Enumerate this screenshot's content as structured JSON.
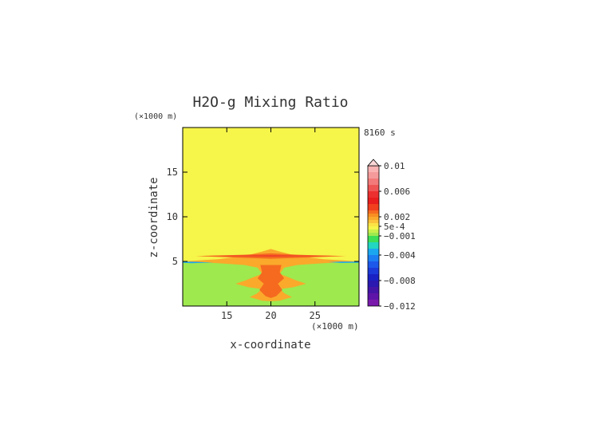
{
  "chart_data": {
    "type": "heatmap",
    "title": "H2O-g Mixing Ratio",
    "time_label": "8160 s",
    "xlabel": "x-coordinate",
    "ylabel": "z-coordinate",
    "x_unit": "(×1000 m)",
    "y_unit": "(×1000 m)",
    "xlim": [
      10,
      30
    ],
    "ylim": [
      0,
      20
    ],
    "x_ticks": [
      15,
      20,
      25
    ],
    "y_ticks": [
      5,
      10,
      15
    ],
    "colorbar": {
      "min": -0.012,
      "max": 0.01,
      "extend": "max",
      "tick_values": [
        0.01,
        0.006,
        0.002,
        0.0005,
        -0.001,
        -0.004,
        -0.008,
        -0.012
      ],
      "tick_labels": [
        "0.01",
        "0.006",
        "0.002",
        "5e-4",
        "−0.001",
        "−0.004",
        "−0.008",
        "−0.012"
      ],
      "levels": [
        {
          "lo": 0.009,
          "hi": 0.01,
          "color": "#f9b3b3"
        },
        {
          "lo": 0.008,
          "hi": 0.009,
          "color": "#f59a9a"
        },
        {
          "lo": 0.007,
          "hi": 0.008,
          "color": "#f27a7a"
        },
        {
          "lo": 0.006,
          "hi": 0.007,
          "color": "#ef5454"
        },
        {
          "lo": 0.005,
          "hi": 0.006,
          "color": "#ec2f2f"
        },
        {
          "lo": 0.004,
          "hi": 0.005,
          "color": "#e81d1d"
        },
        {
          "lo": 0.003,
          "hi": 0.004,
          "color": "#f0401e"
        },
        {
          "lo": 0.0025,
          "hi": 0.003,
          "color": "#f56a1f"
        },
        {
          "lo": 0.002,
          "hi": 0.0025,
          "color": "#f88f22"
        },
        {
          "lo": 0.0015,
          "hi": 0.002,
          "color": "#faa92b"
        },
        {
          "lo": 0.001,
          "hi": 0.0015,
          "color": "#fbc23a"
        },
        {
          "lo": 0.0005,
          "hi": 0.001,
          "color": "#fbe446"
        },
        {
          "lo": 0.0,
          "hi": 0.0005,
          "color": "#f6f54a"
        },
        {
          "lo": -0.0005,
          "hi": 0.0,
          "color": "#c9f04a"
        },
        {
          "lo": -0.001,
          "hi": -0.0005,
          "color": "#9ee94e"
        },
        {
          "lo": -0.002,
          "hi": -0.001,
          "color": "#3cdf55"
        },
        {
          "lo": -0.003,
          "hi": -0.002,
          "color": "#22d6c0"
        },
        {
          "lo": -0.004,
          "hi": -0.003,
          "color": "#1aa7f0"
        },
        {
          "lo": -0.005,
          "hi": -0.004,
          "color": "#1c7ef3"
        },
        {
          "lo": -0.006,
          "hi": -0.005,
          "color": "#1c58ea"
        },
        {
          "lo": -0.007,
          "hi": -0.006,
          "color": "#1c3ad8"
        },
        {
          "lo": -0.008,
          "hi": -0.007,
          "color": "#1a22c4"
        },
        {
          "lo": -0.009,
          "hi": -0.008,
          "color": "#2a18b0"
        },
        {
          "lo": -0.01,
          "hi": -0.009,
          "color": "#4414a6"
        },
        {
          "lo": -0.011,
          "hi": -0.01,
          "color": "#5e14a8"
        },
        {
          "lo": -0.012,
          "hi": -0.011,
          "color": "#7a1aac"
        }
      ]
    },
    "regions": [
      {
        "name": "background-above",
        "value": 0.0002,
        "x0": 10,
        "x1": 30,
        "z0": 5.0,
        "z1": 20
      },
      {
        "name": "background-below",
        "value": -0.0007,
        "x0": 10,
        "x1": 30,
        "z0": 0.0,
        "z1": 5.0
      },
      {
        "name": "anvil-outer",
        "value": 0.0018,
        "poly": [
          [
            10.0,
            5.0
          ],
          [
            14,
            5.25
          ],
          [
            17,
            5.6
          ],
          [
            19,
            6.1
          ],
          [
            20,
            6.4
          ],
          [
            21,
            6.1
          ],
          [
            23,
            5.6
          ],
          [
            26,
            5.25
          ],
          [
            30,
            5.0
          ],
          [
            26,
            4.8
          ],
          [
            23,
            4.6
          ],
          [
            21.5,
            4.3
          ],
          [
            21,
            3.6
          ],
          [
            21.8,
            3.3
          ],
          [
            22.8,
            2.9
          ],
          [
            24,
            2.5
          ],
          [
            22.5,
            2.1
          ],
          [
            21,
            1.9
          ],
          [
            21.6,
            1.4
          ],
          [
            22.4,
            1.0
          ],
          [
            21,
            0.6
          ],
          [
            20,
            0.55
          ],
          [
            19,
            0.6
          ],
          [
            17.6,
            1.0
          ],
          [
            18.4,
            1.4
          ],
          [
            19,
            1.9
          ],
          [
            17.5,
            2.1
          ],
          [
            16,
            2.5
          ],
          [
            17.2,
            2.9
          ],
          [
            18.2,
            3.3
          ],
          [
            19,
            3.6
          ],
          [
            18.5,
            4.3
          ],
          [
            17,
            4.6
          ],
          [
            14,
            4.8
          ]
        ]
      },
      {
        "name": "anvil-core",
        "value": 0.0027,
        "poly": [
          [
            11.5,
            5.6
          ],
          [
            17,
            5.75
          ],
          [
            20,
            5.9
          ],
          [
            23,
            5.75
          ],
          [
            28.5,
            5.6
          ],
          [
            23,
            5.4
          ],
          [
            20,
            5.3
          ],
          [
            17,
            5.4
          ]
        ]
      },
      {
        "name": "anvil-line",
        "value": 0.0055,
        "poly": [
          [
            13,
            5.62
          ],
          [
            20,
            5.68
          ],
          [
            27,
            5.62
          ],
          [
            20,
            5.56
          ]
        ]
      },
      {
        "name": "blue-left",
        "value": -0.0035,
        "poly": [
          [
            10.0,
            4.95
          ],
          [
            11,
            4.97
          ],
          [
            13.5,
            4.88
          ],
          [
            11,
            4.8
          ],
          [
            10,
            4.85
          ]
        ]
      },
      {
        "name": "blue-right",
        "value": -0.0035,
        "poly": [
          [
            26.5,
            4.92
          ],
          [
            28,
            4.98
          ],
          [
            30,
            4.97
          ],
          [
            30,
            4.85
          ],
          [
            28,
            4.83
          ]
        ]
      },
      {
        "name": "column-inner",
        "value": 0.0028,
        "poly": [
          [
            18.8,
            4.6
          ],
          [
            21.2,
            4.6
          ],
          [
            21.0,
            3.8
          ],
          [
            21.5,
            3.1
          ],
          [
            20.8,
            2.5
          ],
          [
            21.3,
            1.8
          ],
          [
            20.6,
            1.1
          ],
          [
            20,
            0.9
          ],
          [
            19.4,
            1.1
          ],
          [
            18.7,
            1.8
          ],
          [
            19.2,
            2.5
          ],
          [
            18.5,
            3.1
          ],
          [
            19.0,
            3.8
          ]
        ]
      }
    ]
  }
}
